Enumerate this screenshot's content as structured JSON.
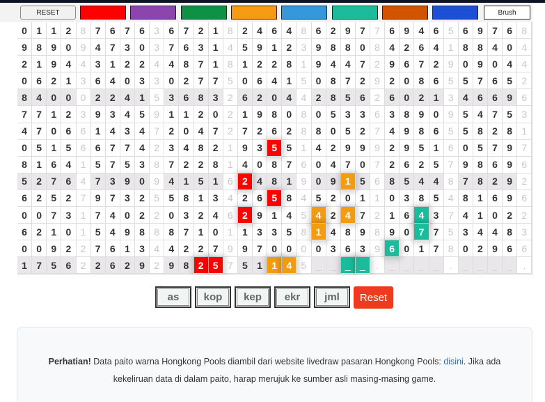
{
  "toolbar": {
    "reset_label": "RESET",
    "brush_label": "Brush",
    "swatches": [
      "#ff0000",
      "#8e44ad",
      "#0e9144",
      "#f39c12",
      "#3498db",
      "#1abc9c",
      "#d35400",
      "#1a4fd6"
    ]
  },
  "grid": {
    "rows": [
      "0112 8 7676 3 6721 8 2464 8 6297 7 6946 5 6976 8",
      "9890 9 4730 3 7631 4 5912 3 9880 8 4264 1 8840 4",
      "2194 4 3122 4 4871 8 1228 1 9447 2 9672 9 0904 4",
      "0621 3 6403 3 0277 5 0641 5 0872 9 2086 5 5765 2",
      "8400 0 2241 5 3683 2 6204 4 2856 2 6021 3 4669 6",
      "7712 3 9345 9 1120 2 1980 8 0533 6 3890 9 5475 3",
      "4706 6 1434 7 2047 2 7262 8 8052 7 4986 5 5828 1",
      "0515 6 6774 2 3482 1 9355 1 4299 9 2951 6 0579 7",
      "8164 1 5753 8 7228 1 4087 6 0470 7 2625 7 9869 6",
      "5276 4 7390 9 4151 6 2481 9 0915 6 8544 8 7829 2",
      "6252 7 9732 5 5813 4 2658 4 5201 1 0385 4 8169 6",
      "0073 1 7402 2 0324 6 2914 5 4247 2 1643 7 4102 2",
      "6210 1 5498 8 8710 1 1335 8 1489 8 9077 5 3448 3",
      "0092 2 7613 4 4227 9 9700 0 0363 9 6017 8 0296 6",
      "1756 2 2629 2 9825 7 5114 5 ____ . ____ . ____ ."
    ],
    "shaded_rows": [
      4,
      9,
      14
    ],
    "highlights": [
      {
        "row": 7,
        "col": 17,
        "color": "#ff0000"
      },
      {
        "row": 9,
        "col": 15,
        "color": "#ff0000"
      },
      {
        "row": 9,
        "col": 22,
        "color": "#f39c12"
      },
      {
        "row": 10,
        "col": 17,
        "color": "#ff0000"
      },
      {
        "row": 11,
        "col": 15,
        "color": "#ff0000"
      },
      {
        "row": 11,
        "col": 20,
        "color": "#f39c12"
      },
      {
        "row": 11,
        "col": 22,
        "color": "#f39c12"
      },
      {
        "row": 11,
        "col": 27,
        "color": "#1abc9c"
      },
      {
        "row": 12,
        "col": 20,
        "color": "#f39c12"
      },
      {
        "row": 12,
        "col": 27,
        "color": "#1abc9c"
      },
      {
        "row": 13,
        "col": 25,
        "color": "#1abc9c"
      },
      {
        "row": 14,
        "col": 12,
        "color": "#ff0000"
      },
      {
        "row": 14,
        "col": 13,
        "color": "#ff0000"
      },
      {
        "row": 14,
        "col": 17,
        "color": "#f39c12"
      },
      {
        "row": 14,
        "col": 18,
        "color": "#f39c12"
      },
      {
        "row": 14,
        "col": 22,
        "color": "#1abc9c"
      },
      {
        "row": 14,
        "col": 23,
        "color": "#1abc9c"
      }
    ]
  },
  "buttons": {
    "as": "as",
    "kop": "kop",
    "kep": "kep",
    "ekr": "ekr",
    "jml": "jml",
    "reset": "Reset"
  },
  "notice": {
    "bold": "Perhatian!",
    "text1": " Data paito warna Hongkong Pools diambil dari website livedraw pasaran Hongkong Pools: ",
    "link": "disini",
    "text2": ". Jika ada kekeliruan data di dalam paito, harap merujuk ke sumber asli masing-masing game."
  }
}
